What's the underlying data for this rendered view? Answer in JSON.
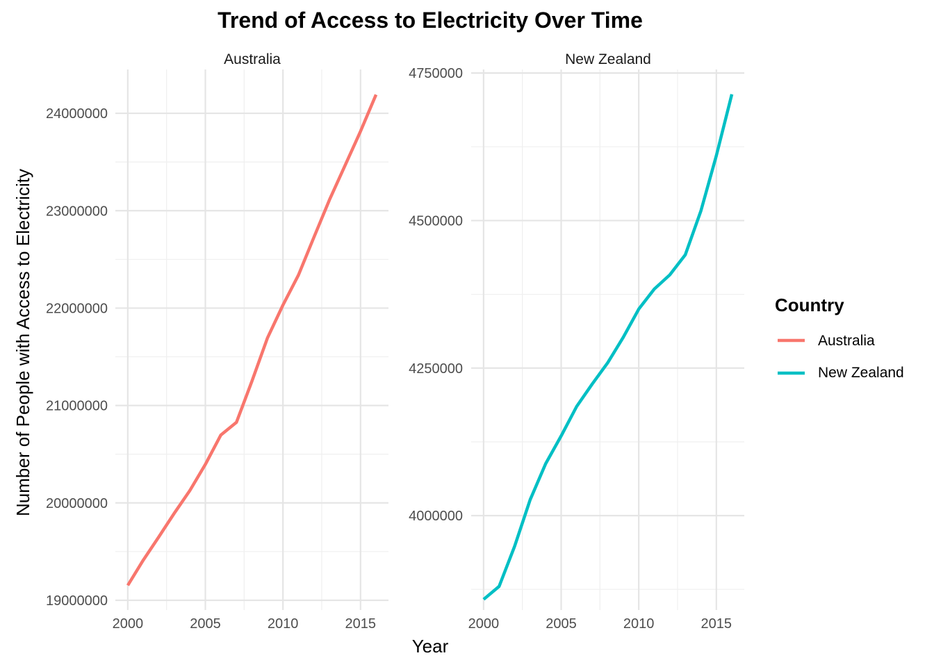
{
  "chart_data": {
    "type": "line",
    "title": "Trend of Access to Electricity Over Time",
    "xlabel": "Year",
    "ylabel": "Number of People with Access to Electricity",
    "grid": true,
    "legend": {
      "title": "Country",
      "position": "right",
      "entries": [
        {
          "label": "Australia",
          "color": "#F8766D"
        },
        {
          "label": "New Zealand",
          "color": "#00BFC4"
        }
      ]
    },
    "facets": [
      {
        "name": "Australia",
        "color": "#F8766D",
        "x": [
          2000,
          2001,
          2002,
          2003,
          2004,
          2005,
          2006,
          2007,
          2008,
          2009,
          2010,
          2011,
          2012,
          2013,
          2014,
          2015,
          2016
        ],
        "y": [
          19153000,
          19413000,
          19651000,
          19895000,
          20127000,
          20395000,
          20697000,
          20827000,
          21249000,
          21692000,
          22032000,
          22340000,
          22729000,
          23112000,
          23464000,
          23816000,
          24191000
        ],
        "xlim": [
          1999.2,
          2016.8
        ],
        "ylim": [
          18900000,
          24450000
        ],
        "x_ticks": [
          2000,
          2005,
          2010,
          2015
        ],
        "x_tick_labels": [
          "2000",
          "2005",
          "2010",
          "2015"
        ],
        "y_ticks": [
          19000000,
          20000000,
          21000000,
          22000000,
          23000000,
          24000000
        ],
        "y_tick_labels": [
          "19000000",
          "20000000",
          "21000000",
          "22000000",
          "23000000",
          "24000000"
        ]
      },
      {
        "name": "New Zealand",
        "color": "#00BFC4",
        "x": [
          2000,
          2001,
          2002,
          2003,
          2004,
          2005,
          2006,
          2007,
          2008,
          2009,
          2010,
          2011,
          2012,
          2013,
          2014,
          2015,
          2016
        ],
        "y": [
          3858000,
          3880000,
          3948000,
          4027000,
          4088000,
          4135000,
          4185000,
          4223000,
          4259000,
          4302000,
          4350000,
          4384000,
          4408000,
          4442000,
          4516000,
          4610000,
          4714000
        ],
        "xlim": [
          1999.2,
          2016.8
        ],
        "ylim": [
          3840000,
          4756000
        ],
        "x_ticks": [
          2000,
          2005,
          2010,
          2015
        ],
        "x_tick_labels": [
          "2000",
          "2005",
          "2010",
          "2015"
        ],
        "y_ticks": [
          4000000,
          4250000,
          4500000,
          4750000
        ],
        "y_tick_labels": [
          "4000000",
          "4250000",
          "4500000",
          "4750000"
        ]
      }
    ]
  }
}
